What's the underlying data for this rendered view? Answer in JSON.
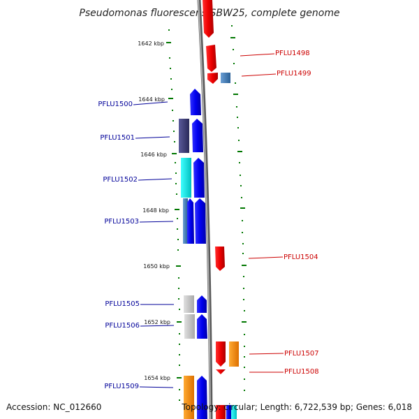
{
  "title": "Pseudomonas fluorescens SBW25, complete genome",
  "footer": {
    "accession": "Accession: NC_012660",
    "topology": "Topology: circular; Length: 6,722,539 bp; Genes: 6,018"
  },
  "ticks": [
    "1642 kbp",
    "1644 kbp",
    "1646 kbp",
    "1648 kbp",
    "1650 kbp",
    "1652 kbp",
    "1654 kbp"
  ],
  "genes_right": [
    "PFLU1498",
    "PFLU1499",
    "PFLU1504",
    "PFLU1507",
    "PFLU1508"
  ],
  "genes_left": [
    "PFLU1500",
    "PFLU1501",
    "PFLU1502",
    "PFLU1503",
    "PFLU1505",
    "PFLU1506",
    "PFLU1509"
  ],
  "colors": {
    "forward": "#ee0000",
    "reverse": "#0000ee",
    "cog_steel": "#4a7fb5",
    "cog_navy": "#3a3a7a",
    "cog_cyan": "#00e5e5",
    "cog_grey": "#c8c8c8",
    "cog_orange": "#ff8800",
    "tick": "#006600",
    "backbone": "#888888"
  }
}
